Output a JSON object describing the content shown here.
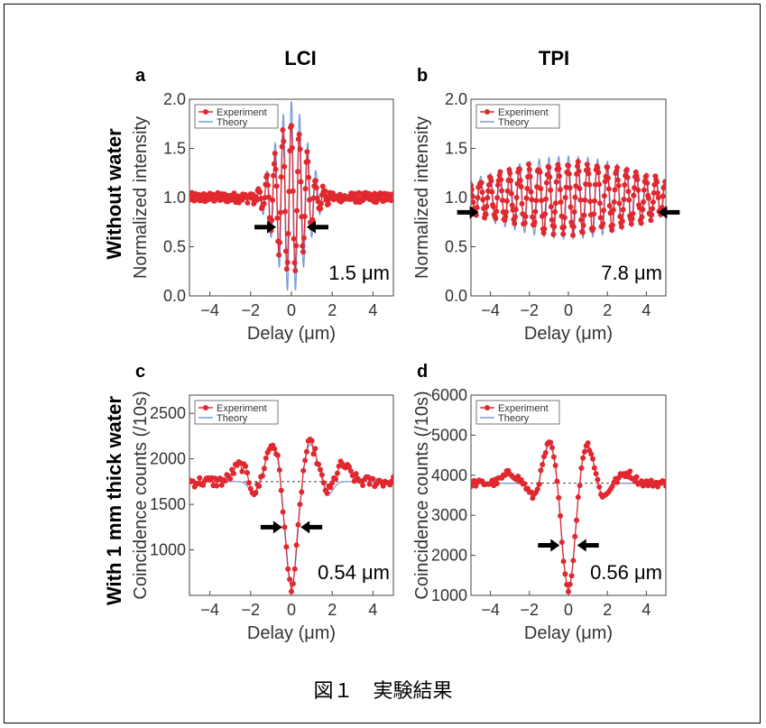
{
  "caption": "図１　実験結果",
  "column_titles": [
    "LCI",
    "TPI"
  ],
  "row_titles": [
    "Without water",
    "With 1 mm thick water"
  ],
  "colors": {
    "experiment": "#e0282e",
    "theory": "#7b9ad6",
    "arrow": "#000000"
  },
  "chart_data": [
    {
      "type": "line",
      "panel": "a",
      "xlabel": "Delay (μm)",
      "ylabel": "Normalized intensity",
      "xlim": [
        -5,
        5
      ],
      "ylim": [
        0.0,
        2.0
      ],
      "xticks": [
        -4,
        -2,
        0,
        2,
        4
      ],
      "yticks": [
        "0.0",
        "0.5",
        "1.0",
        "1.5",
        "2.0"
      ],
      "legend": [
        "Experiment",
        "Theory"
      ],
      "legend_position": "top-left",
      "annotation": "1.5 μm",
      "arrows_at": [
        -0.75,
        0.75
      ],
      "arrow_y": 0.7,
      "model": {
        "kind": "lci",
        "baseline": 1.0,
        "amplitude": 0.98,
        "width": 0.75,
        "period": 0.4,
        "noise": 0.05,
        "exp_amplitude": 0.75
      }
    },
    {
      "type": "line",
      "panel": "b",
      "xlabel": "Delay (μm)",
      "ylabel": "Normalized intensity",
      "xlim": [
        -5,
        5
      ],
      "ylim": [
        0.0,
        2.0
      ],
      "xticks": [
        -4,
        -2,
        0,
        2,
        4
      ],
      "yticks": [
        "0.0",
        "0.5",
        "1.0",
        "1.5",
        "2.0"
      ],
      "legend": [
        "Experiment",
        "Theory"
      ],
      "legend_position": "top-left",
      "annotation": "7.8 μm",
      "arrows_at": [
        -4.6,
        4.6
      ],
      "arrow_y": 0.85,
      "model": {
        "kind": "lci",
        "baseline": 1.0,
        "amplitude": 0.42,
        "width": 3.9,
        "period": 0.5,
        "noise": 0.04,
        "exp_amplitude": 0.35
      }
    },
    {
      "type": "line",
      "panel": "c",
      "xlabel": "Delay (μm)",
      "ylabel": "Coincidence counts (/10s)",
      "xlim": [
        -5,
        5
      ],
      "ylim": [
        500,
        2700
      ],
      "xticks": [
        -4,
        -2,
        0,
        2,
        4
      ],
      "yticks": [
        "1000",
        "1500",
        "2000",
        "2500"
      ],
      "legend": [
        "Experiment",
        "Theory"
      ],
      "legend_position": "top-left",
      "annotation": "0.54 μm",
      "arrows_at": [
        -0.45,
        0.45
      ],
      "arrow_y": 1250,
      "baseline": 1750,
      "model": {
        "kind": "tpi",
        "baseline": 1750,
        "dip": 1180,
        "dip_width": 0.3,
        "side_pos": 0.9,
        "side_amp": 420,
        "side_width": 0.35,
        "outer_pos": 2.5,
        "outer_amp": 180,
        "noise": 60
      }
    },
    {
      "type": "line",
      "panel": "d",
      "xlabel": "Delay (μm)",
      "ylabel": "Coincidence counts (/10s)",
      "xlim": [
        -5,
        5
      ],
      "ylim": [
        1000,
        6000
      ],
      "xticks": [
        -4,
        -2,
        0,
        2,
        4
      ],
      "yticks": [
        "1000",
        "2000",
        "3000",
        "4000",
        "5000",
        "6000"
      ],
      "legend": [
        "Experiment",
        "Theory"
      ],
      "legend_position": "top-left",
      "annotation": "0.56 μm",
      "arrows_at": [
        -0.45,
        0.45
      ],
      "arrow_y": 2250,
      "baseline": 3800,
      "model": {
        "kind": "tpi",
        "baseline": 3800,
        "dip": 2650,
        "dip_width": 0.32,
        "side_pos": 0.95,
        "side_amp": 1000,
        "side_width": 0.32,
        "outer_pos": 3.0,
        "outer_amp": 250,
        "noise": 90
      }
    }
  ]
}
